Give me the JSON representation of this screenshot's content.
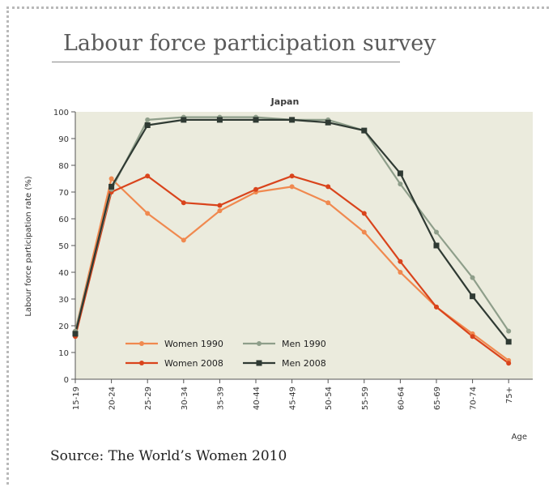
{
  "header": {
    "title": "Labour force participation survey"
  },
  "footer": {
    "source": "Source: The World’s Women 2010"
  },
  "chart_data": {
    "type": "line",
    "title": "Japan",
    "xlabel": "Age",
    "ylabel": "Labour force participation rate (%)",
    "ylim": [
      0,
      100
    ],
    "yticks": [
      0,
      10,
      20,
      30,
      40,
      50,
      60,
      70,
      80,
      90,
      100
    ],
    "grid": false,
    "legend_position": "lower-left",
    "categories": [
      "15-19",
      "20-24",
      "25-29",
      "30-34",
      "35-39",
      "40-44",
      "45-49",
      "50-54",
      "55-59",
      "60-64",
      "65-69",
      "70-74",
      "75+"
    ],
    "series": [
      {
        "name": "Women 1990",
        "color": "#f0894f",
        "marker": "circle",
        "values": [
          18,
          75,
          62,
          52,
          63,
          70,
          72,
          66,
          55,
          40,
          27,
          17,
          7
        ]
      },
      {
        "name": "Women 2008",
        "color": "#d9441c",
        "marker": "circle",
        "values": [
          16,
          70,
          76,
          66,
          65,
          71,
          76,
          72,
          62,
          44,
          27,
          16,
          6
        ]
      },
      {
        "name": "Men 1990",
        "color": "#8e9e8a",
        "marker": "circle",
        "values": [
          18,
          71,
          97,
          98,
          98,
          98,
          97,
          97,
          93,
          73,
          55,
          38,
          18
        ]
      },
      {
        "name": "Men 2008",
        "color": "#2f3a33",
        "marker": "square",
        "values": [
          17,
          72,
          95,
          97,
          97,
          97,
          97,
          96,
          93,
          77,
          50,
          31,
          14
        ]
      }
    ]
  }
}
